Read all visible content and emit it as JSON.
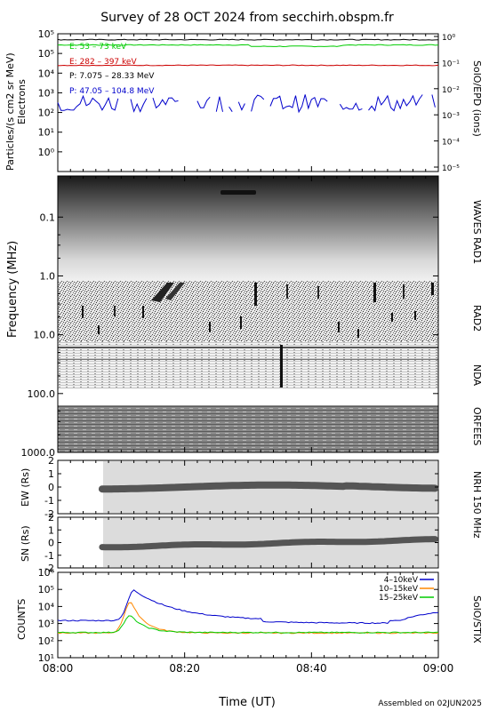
{
  "title": "Survey of 28 OCT 2024 from secchirh.obspm.fr",
  "footer": "Assembled on 02JUN2025",
  "xaxis": {
    "label": "Time (UT)",
    "ticks": [
      "08:00",
      "08:20",
      "08:40",
      "09:00"
    ]
  },
  "chart_data": [
    {
      "type": "line",
      "panel": "particles",
      "ylabel_left": "Particles/(s cm2 sr MeV)",
      "ylabel_left_sub": "Electrons",
      "ylabel_right": "SolO/EPD (ions)",
      "yscale": "log",
      "ylim": [
        0.1,
        1000000
      ],
      "y2lim": [
        1e-05,
        1
      ],
      "left_ticks": [
        "10⁰",
        "10¹",
        "10²",
        "10³",
        "10⁴",
        "10⁵",
        "10⁵"
      ],
      "right_ticks": [
        "10⁻⁵",
        "10⁻⁴",
        "10⁻³",
        "10⁻²",
        "10⁻¹",
        "10⁰"
      ],
      "series": [
        {
          "name": "E: 53 – 73 keV",
          "color": "#00cc00",
          "level": 270000
        },
        {
          "name": "E: 282 – 397 keV",
          "color": "#cc0000",
          "level": 25000
        },
        {
          "name": "P: 7.075 – 28.33 MeV",
          "color": "#000000",
          "level": 500000
        },
        {
          "name": "P: 47.05 – 104.8 MeV",
          "color": "#0000cc",
          "level": 300
        }
      ]
    },
    {
      "type": "heatmap",
      "panel": "spectrogram",
      "ylabel": "Frequency (MHz)",
      "yscale": "log",
      "ylim": [
        0.02,
        1000
      ],
      "yticks": [
        "0.1",
        "1.0",
        "10.0",
        "100.0",
        "1000.0"
      ],
      "instruments": [
        "WAVES RAD1",
        "RAD2",
        "NDA",
        "ORFEES"
      ]
    },
    {
      "type": "heatmap",
      "panel": "nrh-ew",
      "ylabel": "EW (Rs)",
      "ylim": [
        -2,
        2
      ],
      "yticks": [
        "2",
        "1",
        "0",
        "-1",
        "-2"
      ],
      "instrument": "NRH 150 MHz"
    },
    {
      "type": "heatmap",
      "panel": "nrh-sn",
      "ylabel": "SN (Rs)",
      "ylim": [
        -2,
        2
      ],
      "yticks": [
        "2",
        "1",
        "0",
        "-1",
        "-2"
      ]
    },
    {
      "type": "line",
      "panel": "stix",
      "ylabel": "COUNTS",
      "ylabel_right": "SolO/STIX",
      "yscale": "log",
      "ylim": [
        10,
        1000000
      ],
      "yticks": [
        "10¹",
        "10²",
        "10³",
        "10⁴",
        "10⁵",
        "10⁶"
      ],
      "series": [
        {
          "name": "4–10keV",
          "color": "#0000cc",
          "base": 1500,
          "peak": 90000,
          "peak_time": 12
        },
        {
          "name": "10–15keV",
          "color": "#ff8800",
          "base": 280,
          "peak": 20000,
          "peak_time": 11.5
        },
        {
          "name": "15–25keV",
          "color": "#00cc00",
          "base": 300,
          "peak": 3000,
          "peak_time": 11.5
        }
      ]
    }
  ]
}
